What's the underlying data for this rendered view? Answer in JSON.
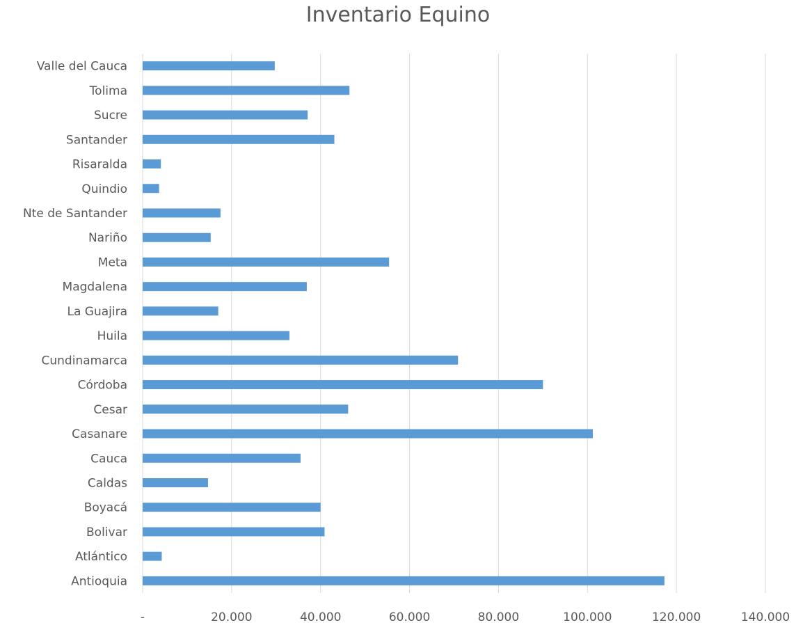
{
  "chart_data": {
    "type": "bar",
    "orientation": "horizontal",
    "title": "Inventario Equino",
    "categories": [
      "Antioquia",
      "Atlántico",
      "Bolivar",
      "Boyacá",
      "Caldas",
      "Cauca",
      "Casanare",
      "Cesar",
      "Córdoba",
      "Cundinamarca",
      "Huila",
      "La Guajira",
      "Magdalena",
      "Meta",
      "Nariño",
      "Nte de Santander",
      "Quindio",
      "Risaralda",
      "Santander",
      "Sucre",
      "Tolima",
      "Valle del Cauca"
    ],
    "values": [
      117300,
      4300,
      40900,
      40000,
      14700,
      35500,
      101200,
      46200,
      90000,
      70900,
      33000,
      17000,
      36900,
      55400,
      15300,
      17500,
      3700,
      4100,
      43100,
      37100,
      46500,
      29700
    ],
    "xlim": [
      0,
      140000
    ],
    "xticks": [
      0,
      20000,
      40000,
      60000,
      80000,
      100000,
      120000,
      140000
    ],
    "xtick_labels": [
      "-",
      "20.000",
      "40.000",
      "60.000",
      "80.000",
      "100.000",
      "120.000",
      "140.000"
    ],
    "bar_color": "#5b9bd5",
    "grid_color": "#d9d9d9",
    "grid": "vertical",
    "legend": "none"
  }
}
